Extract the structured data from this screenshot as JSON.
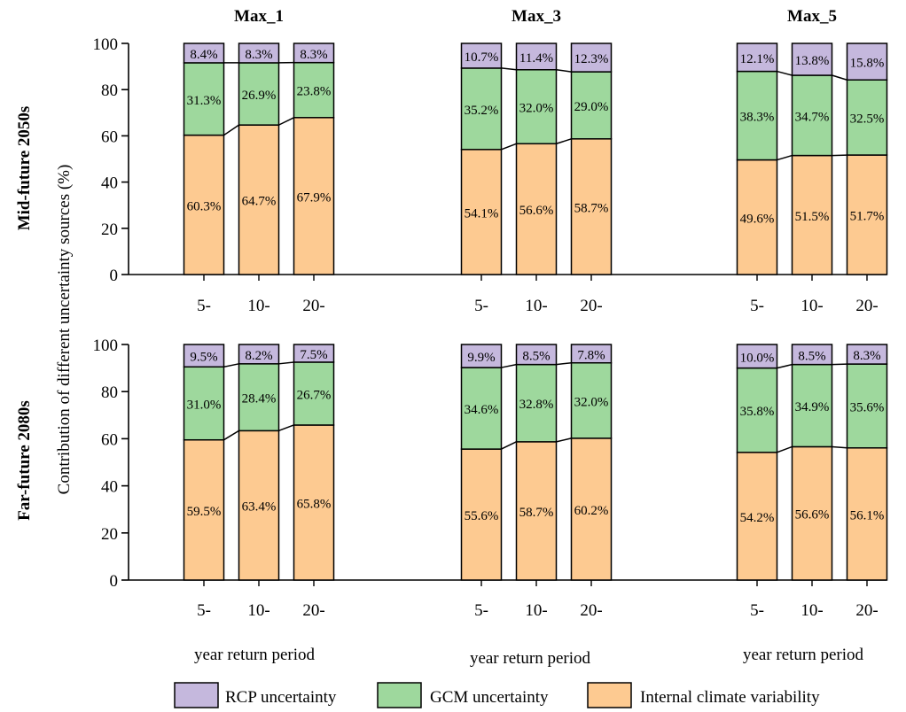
{
  "y_axis_label": "Contribution of different uncertainty sources (%)",
  "x_axis_label": "year return period",
  "rows": [
    {
      "label": "Mid-future 2050s"
    },
    {
      "label": "Far-future 2080s"
    }
  ],
  "legend": [
    {
      "key": "rcp",
      "label": "RCP uncertainty",
      "color": "#c5b8dd"
    },
    {
      "key": "gcm",
      "label": "GCM uncertainty",
      "color": "#9ed89d"
    },
    {
      "key": "icv",
      "label": "Internal climate variability",
      "color": "#fdca91"
    }
  ],
  "chart_data": {
    "type": "bar",
    "stacked": true,
    "ylim": [
      0,
      100
    ],
    "yticks": [
      0,
      20,
      40,
      60,
      80,
      100
    ],
    "categories": [
      "5-",
      "10-",
      "20-"
    ],
    "panels": [
      {
        "row": 0,
        "title": "Max_1",
        "icv": [
          60.3,
          64.7,
          67.9
        ],
        "gcm": [
          31.3,
          26.9,
          23.8
        ],
        "rcp": [
          8.4,
          8.3,
          8.3
        ],
        "labels": {
          "icv": [
            "60.3%",
            "64.7%",
            "67.9%"
          ],
          "gcm": [
            "31.3%",
            "26.9%",
            "23.8%"
          ],
          "rcp": [
            "8.4%",
            "8.3%",
            "8.3%"
          ]
        }
      },
      {
        "row": 0,
        "title": "Max_3",
        "icv": [
          54.1,
          56.6,
          58.7
        ],
        "gcm": [
          35.2,
          32.0,
          29.0
        ],
        "rcp": [
          10.7,
          11.4,
          12.3
        ],
        "labels": {
          "icv": [
            "54.1%",
            "56.6%",
            "58.7%"
          ],
          "gcm": [
            "35.2%",
            "32.0%",
            "29.0%"
          ],
          "rcp": [
            "10.7%",
            "11.4%",
            "12.3%"
          ]
        }
      },
      {
        "row": 0,
        "title": "Max_5",
        "icv": [
          49.6,
          51.5,
          51.7
        ],
        "gcm": [
          38.3,
          34.7,
          32.5
        ],
        "rcp": [
          12.1,
          13.8,
          15.8
        ],
        "labels": {
          "icv": [
            "49.6%",
            "51.5%",
            "51.7%"
          ],
          "gcm": [
            "38.3%",
            "34.7%",
            "32.5%"
          ],
          "rcp": [
            "12.1%",
            "13.8%",
            "15.8%"
          ]
        }
      },
      {
        "row": 1,
        "title": "",
        "icv": [
          59.5,
          63.4,
          65.8
        ],
        "gcm": [
          31.0,
          28.4,
          26.7
        ],
        "rcp": [
          9.5,
          8.2,
          7.5
        ],
        "labels": {
          "icv": [
            "59.5%",
            "63.4%",
            "65.8%"
          ],
          "gcm": [
            "31.0%",
            "28.4%",
            "26.7%"
          ],
          "rcp": [
            "9.5%",
            "8.2%",
            "7.5%"
          ]
        }
      },
      {
        "row": 1,
        "title": "",
        "icv": [
          55.6,
          58.7,
          60.2
        ],
        "gcm": [
          34.6,
          32.8,
          32.0
        ],
        "rcp": [
          9.9,
          8.5,
          7.8
        ],
        "labels": {
          "icv": [
            "55.6%",
            "58.7%",
            "60.2%"
          ],
          "gcm": [
            "34.6%",
            "32.8%",
            "32.0%"
          ],
          "rcp": [
            "9.9%",
            "8.5%",
            "7.8%"
          ]
        }
      },
      {
        "row": 1,
        "title": "",
        "icv": [
          54.2,
          56.6,
          56.1
        ],
        "gcm": [
          35.8,
          34.9,
          35.6
        ],
        "rcp": [
          10.0,
          8.5,
          8.3
        ],
        "labels": {
          "icv": [
            "54.2%",
            "56.6%",
            "56.1%"
          ],
          "gcm": [
            "35.8%",
            "34.9%",
            "35.6%"
          ],
          "rcp": [
            "10.0%",
            "8.5%",
            "8.3%"
          ]
        }
      }
    ]
  }
}
